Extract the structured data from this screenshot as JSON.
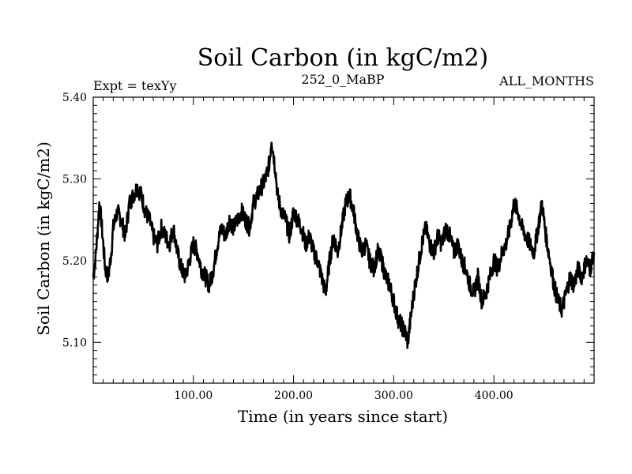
{
  "chart_data": {
    "type": "line",
    "title": "Soil Carbon (in kgC/m2)",
    "subtitle_left": "Expt = texYy",
    "subtitle_center": "252_0_MaBP",
    "subtitle_right": "ALL_MONTHS",
    "xlabel": "Time (in years since start)",
    "ylabel": "Soil Carbon (in kgC/m2)",
    "xlim": [
      0,
      500
    ],
    "ylim": [
      5.05,
      5.4
    ],
    "x_ticks": [
      100,
      200,
      300,
      400
    ],
    "x_tick_labels": [
      "100.00",
      "200.00",
      "300.00",
      "400.00"
    ],
    "y_ticks": [
      5.1,
      5.2,
      5.3,
      5.4
    ],
    "y_tick_labels": [
      "5.10",
      "5.20",
      "5.30",
      "5.40"
    ],
    "grid": false,
    "line_color": "#000000",
    "series": [
      {
        "x": [
          0,
          2,
          4,
          6,
          8,
          10,
          12,
          15,
          18,
          20,
          24,
          28,
          32,
          36,
          40,
          44,
          48,
          52,
          56,
          60,
          64,
          68,
          72,
          76,
          80,
          84,
          88,
          92,
          96,
          100,
          104,
          108,
          112,
          116,
          120,
          124,
          128,
          132,
          136,
          140,
          144,
          148,
          152,
          156,
          160,
          164,
          168,
          172,
          176,
          178,
          180,
          182,
          184,
          188,
          192,
          196,
          200,
          204,
          208,
          212,
          216,
          220,
          224,
          228,
          232,
          236,
          240,
          244,
          248,
          252,
          256,
          260,
          264,
          268,
          272,
          276,
          280,
          284,
          288,
          292,
          296,
          300,
          304,
          308,
          312,
          314,
          316,
          320,
          324,
          328,
          332,
          336,
          340,
          344,
          348,
          352,
          356,
          360,
          364,
          368,
          372,
          376,
          380,
          384,
          388,
          392,
          396,
          400,
          404,
          408,
          412,
          416,
          420,
          424,
          428,
          432,
          436,
          440,
          444,
          448,
          452,
          456,
          460,
          464,
          468,
          472,
          476,
          480,
          484,
          488,
          492,
          496,
          500
        ],
        "y": [
          5.18,
          5.2,
          5.23,
          5.27,
          5.25,
          5.22,
          5.19,
          5.18,
          5.21,
          5.24,
          5.26,
          5.25,
          5.23,
          5.27,
          5.28,
          5.29,
          5.28,
          5.26,
          5.25,
          5.23,
          5.22,
          5.24,
          5.23,
          5.22,
          5.24,
          5.21,
          5.19,
          5.18,
          5.2,
          5.22,
          5.21,
          5.19,
          5.18,
          5.17,
          5.19,
          5.22,
          5.24,
          5.23,
          5.25,
          5.24,
          5.25,
          5.26,
          5.25,
          5.24,
          5.27,
          5.28,
          5.29,
          5.3,
          5.32,
          5.35,
          5.33,
          5.31,
          5.28,
          5.26,
          5.25,
          5.23,
          5.26,
          5.25,
          5.24,
          5.22,
          5.23,
          5.21,
          5.2,
          5.18,
          5.16,
          5.2,
          5.23,
          5.21,
          5.24,
          5.27,
          5.28,
          5.26,
          5.23,
          5.21,
          5.22,
          5.2,
          5.19,
          5.21,
          5.2,
          5.18,
          5.17,
          5.15,
          5.13,
          5.12,
          5.11,
          5.1,
          5.12,
          5.16,
          5.19,
          5.22,
          5.24,
          5.22,
          5.21,
          5.23,
          5.22,
          5.24,
          5.23,
          5.21,
          5.22,
          5.2,
          5.19,
          5.17,
          5.16,
          5.18,
          5.15,
          5.16,
          5.18,
          5.2,
          5.19,
          5.21,
          5.22,
          5.24,
          5.27,
          5.26,
          5.24,
          5.23,
          5.22,
          5.21,
          5.24,
          5.27,
          5.23,
          5.2,
          5.17,
          5.15,
          5.14,
          5.16,
          5.18,
          5.17,
          5.19,
          5.18,
          5.2,
          5.19,
          5.21
        ]
      }
    ]
  }
}
